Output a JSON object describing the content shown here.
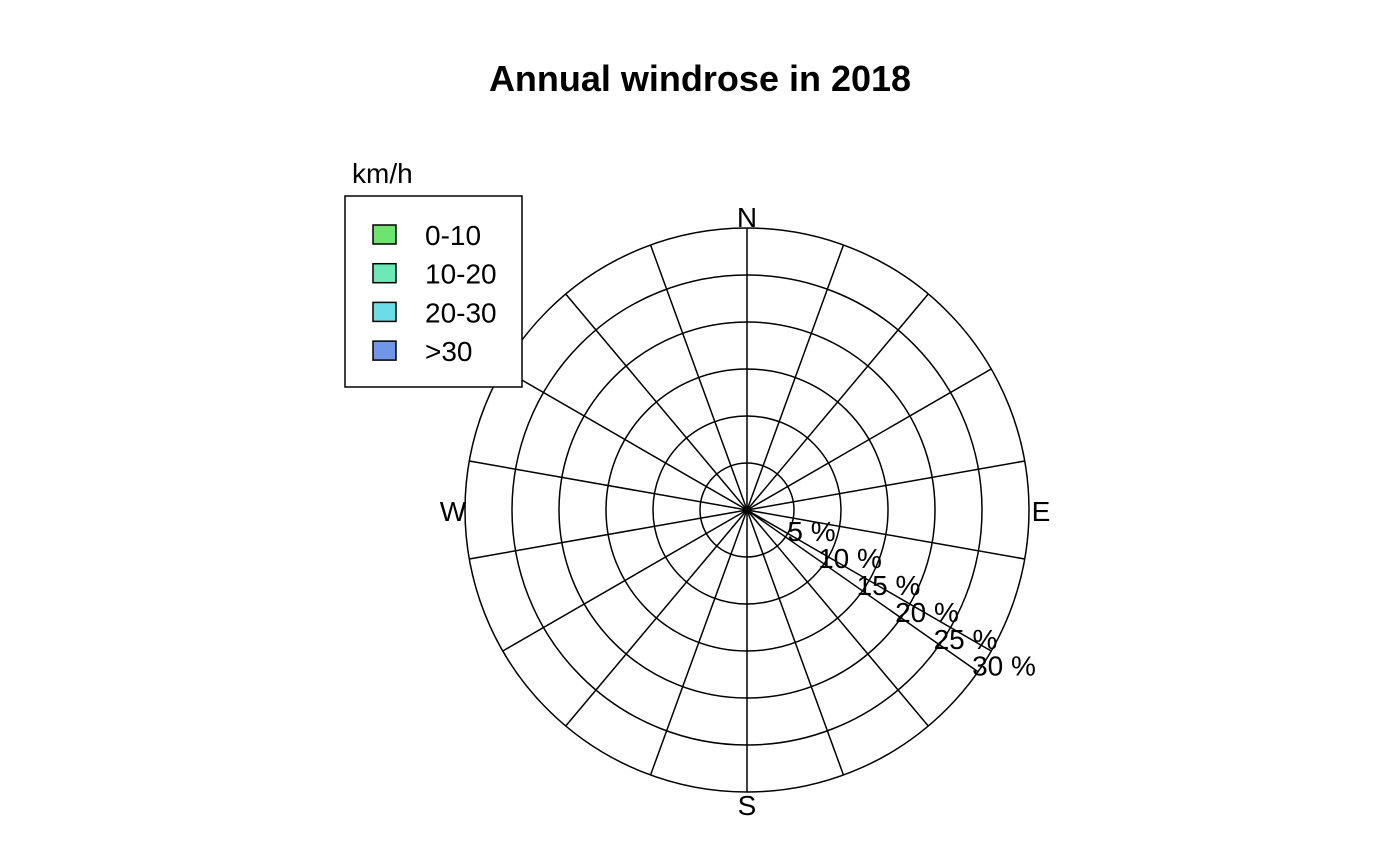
{
  "chart_data": {
    "type": "windrose",
    "title": "Annual windrose in 2018",
    "directions": {
      "north": "N",
      "east": "E",
      "south": "S",
      "west": "W"
    },
    "sector_count": 18,
    "radial_axis": {
      "unit": "%",
      "max": 30,
      "ticks": [
        5,
        10,
        15,
        20,
        25,
        30
      ],
      "tick_labels": [
        "5 %",
        "10 %",
        "15 %",
        "20 %",
        "25 %",
        "30 %"
      ]
    },
    "legend": {
      "title": "km/h",
      "placement": "top-left",
      "entries": [
        {
          "label": "0-10",
          "color": "#6EE36E"
        },
        {
          "label": "10-20",
          "color": "#6EE8B6"
        },
        {
          "label": "20-30",
          "color": "#6EDBE8"
        },
        {
          "label": ">30",
          "color": "#7096E8"
        }
      ]
    },
    "series": [
      {
        "name": "0-10",
        "values": []
      },
      {
        "name": "10-20",
        "values": []
      },
      {
        "name": "20-30",
        "values": []
      },
      {
        "name": ">30",
        "values": []
      }
    ]
  }
}
